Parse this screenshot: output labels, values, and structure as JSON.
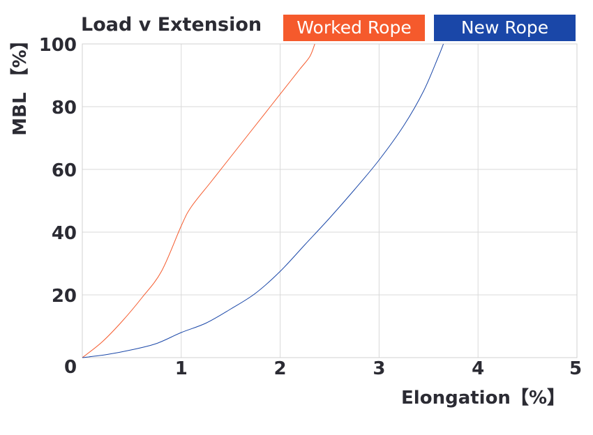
{
  "chart_data": {
    "type": "line",
    "title": "Load v Extension",
    "xlabel": "Elongation【%】",
    "ylabel": "MBL 【%】",
    "xlim": [
      0,
      5
    ],
    "ylim": [
      0,
      100
    ],
    "x_ticks": [
      "0",
      "1",
      "2",
      "3",
      "4",
      "5"
    ],
    "y_ticks": [
      "20",
      "40",
      "60",
      "80",
      "100"
    ],
    "grid": true,
    "legend_position": "top",
    "series": [
      {
        "name": "Worked Rope",
        "color": "#f55a2c",
        "points": [
          [
            0,
            0
          ],
          [
            0.2,
            5
          ],
          [
            0.4,
            11.5
          ],
          [
            0.6,
            19
          ],
          [
            0.8,
            27.5
          ],
          [
            1.0,
            42
          ],
          [
            1.1,
            48
          ],
          [
            1.3,
            56
          ],
          [
            1.5,
            64
          ],
          [
            1.7,
            72
          ],
          [
            1.9,
            80
          ],
          [
            2.1,
            88
          ],
          [
            2.2,
            92
          ],
          [
            2.3,
            96
          ],
          [
            2.35,
            100
          ]
        ]
      },
      {
        "name": "New Rope",
        "color": "#1a47a8",
        "points": [
          [
            0,
            0
          ],
          [
            0.25,
            1
          ],
          [
            0.5,
            2.5
          ],
          [
            0.75,
            4.5
          ],
          [
            1.0,
            8
          ],
          [
            1.25,
            11
          ],
          [
            1.5,
            15.5
          ],
          [
            1.75,
            20.5
          ],
          [
            2.0,
            27.5
          ],
          [
            2.25,
            36
          ],
          [
            2.5,
            44.5
          ],
          [
            2.75,
            53.5
          ],
          [
            3.0,
            63
          ],
          [
            3.25,
            74
          ],
          [
            3.45,
            85
          ],
          [
            3.6,
            96
          ],
          [
            3.65,
            100
          ]
        ]
      }
    ]
  }
}
